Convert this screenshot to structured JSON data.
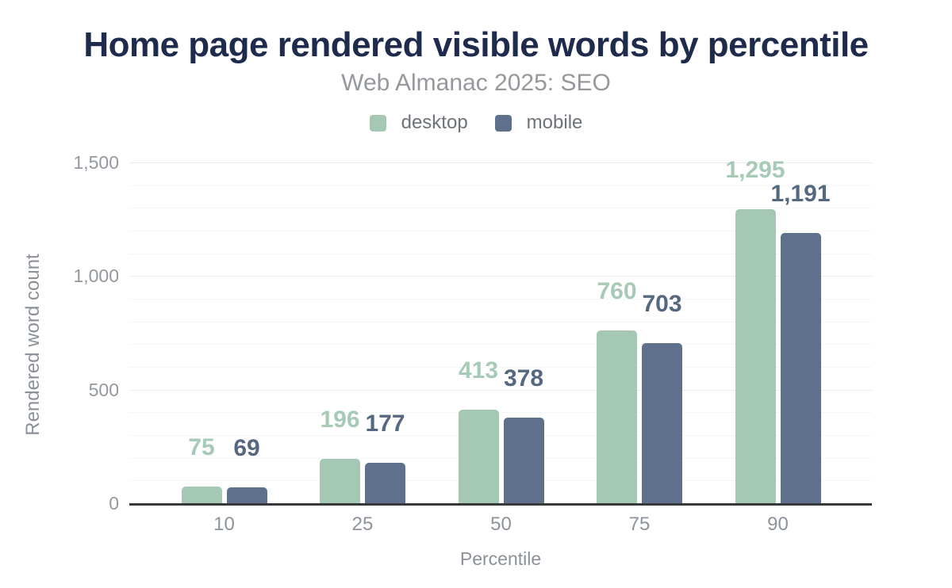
{
  "chart_data": {
    "type": "bar",
    "title": "Home page rendered visible words by percentile",
    "subtitle": "Web Almanac 2025: SEO",
    "xlabel": "Percentile",
    "ylabel": "Rendered word count",
    "categories": [
      "10",
      "25",
      "50",
      "75",
      "90"
    ],
    "series": [
      {
        "name": "desktop",
        "color": "#a5c8b5",
        "label_color": "#a7cab7",
        "values": [
          75,
          196,
          413,
          760,
          1295
        ],
        "value_labels": [
          "75",
          "196",
          "413",
          "760",
          "1,295"
        ]
      },
      {
        "name": "mobile",
        "color": "#5e708b",
        "label_color": "#56687f",
        "values": [
          69,
          177,
          378,
          703,
          1191
        ],
        "value_labels": [
          "69",
          "177",
          "378",
          "703",
          "1,191"
        ]
      }
    ],
    "ylim": [
      0,
      1500
    ],
    "y_ticks": [
      {
        "value": 0,
        "label": "0"
      },
      {
        "value": 500,
        "label": "500"
      },
      {
        "value": 1000,
        "label": "1,000"
      },
      {
        "value": 1500,
        "label": "1,500"
      }
    ],
    "grid": {
      "on": true,
      "minor_step": 100,
      "major_step": 500
    },
    "legend_position": "top"
  },
  "colors": {
    "title": "#1f2b4d",
    "subtitle": "#95989c",
    "legend_text": "#6e737a",
    "tick_label": "#94999f",
    "category_label": "#8d939a",
    "axis_title": "#8b9197",
    "axis_line": "#37383a",
    "grid_minor": "#f5f6f6",
    "grid_major": "#e9eaeb",
    "background": "#ffffff"
  }
}
